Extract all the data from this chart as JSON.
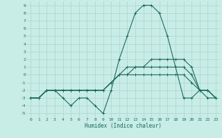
{
  "bg_color": "#c8ece6",
  "grid_color": "#b0d8d0",
  "line_color": "#1a6b5a",
  "xlabel": "Humidex (Indice chaleur)",
  "xlim": [
    -0.5,
    23.5
  ],
  "ylim": [
    -5.5,
    9.5
  ],
  "yticks": [
    -5,
    -4,
    -3,
    -2,
    -1,
    0,
    1,
    2,
    3,
    4,
    5,
    6,
    7,
    8,
    9
  ],
  "xticks": [
    0,
    1,
    2,
    3,
    4,
    5,
    6,
    7,
    8,
    9,
    10,
    11,
    12,
    13,
    14,
    15,
    16,
    17,
    18,
    19,
    20,
    21,
    22,
    23
  ],
  "line1_x": [
    0,
    1,
    2,
    3,
    4,
    5,
    6,
    7,
    8,
    9,
    10,
    11,
    12,
    13,
    14,
    15,
    16,
    17,
    18,
    19,
    20,
    21,
    22,
    23
  ],
  "line1_y": [
    -3,
    -3,
    -2,
    -2,
    -3,
    -4,
    -3,
    -3,
    -4,
    -5,
    -2,
    2,
    5,
    8,
    9,
    9,
    8,
    5,
    1,
    -3,
    -3,
    -2,
    -3,
    -3
  ],
  "line2_x": [
    0,
    1,
    2,
    3,
    4,
    5,
    6,
    7,
    8,
    9,
    10,
    11,
    12,
    13,
    14,
    15,
    16,
    17,
    18,
    19,
    20,
    21,
    22,
    23
  ],
  "line2_y": [
    -3,
    -3,
    -2,
    -2,
    -2,
    -2,
    -2,
    -2,
    -2,
    -2,
    -1,
    0,
    1,
    1,
    1,
    2,
    2,
    2,
    2,
    2,
    1,
    -2,
    -2,
    -3
  ],
  "line3_x": [
    0,
    1,
    2,
    3,
    4,
    5,
    6,
    7,
    8,
    9,
    10,
    11,
    12,
    13,
    14,
    15,
    16,
    17,
    18,
    19,
    20,
    21,
    22,
    23
  ],
  "line3_y": [
    -3,
    -3,
    -2,
    -2,
    -2,
    -2,
    -2,
    -2,
    -2,
    -2,
    -1,
    0,
    0,
    1,
    1,
    1,
    1,
    1,
    1,
    1,
    0,
    -2,
    -2,
    -3
  ],
  "line4_x": [
    0,
    1,
    2,
    3,
    4,
    5,
    6,
    7,
    8,
    9,
    10,
    11,
    12,
    13,
    14,
    15,
    16,
    17,
    18,
    19,
    20,
    21,
    22,
    23
  ],
  "line4_y": [
    -3,
    -3,
    -2,
    -2,
    -2,
    -2,
    -2,
    -2,
    -2,
    -2,
    -1,
    0,
    0,
    0,
    0,
    0,
    0,
    0,
    0,
    0,
    -1,
    -2,
    -2,
    -3
  ]
}
